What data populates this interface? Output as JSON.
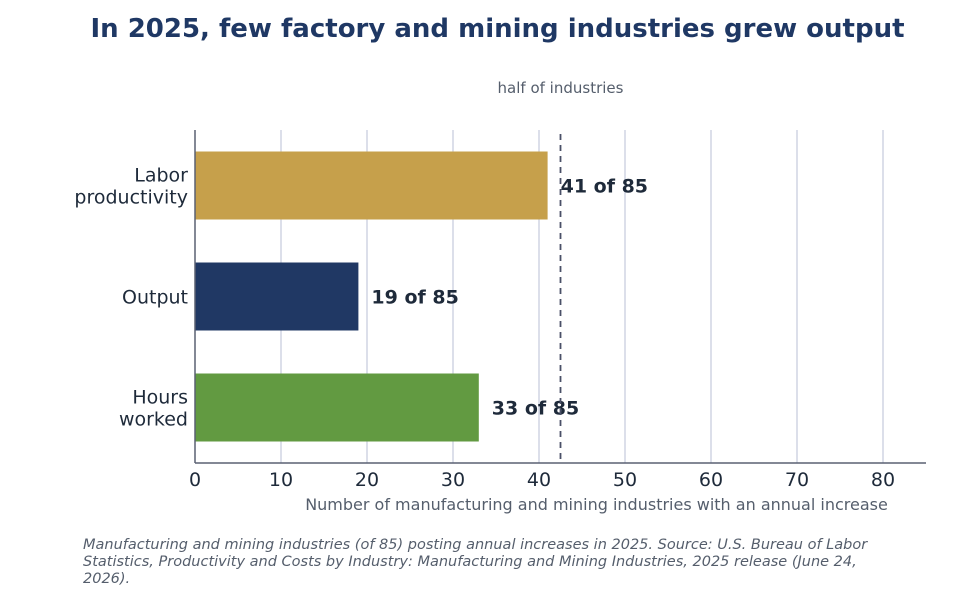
{
  "chart_data": {
    "type": "bar",
    "orientation": "horizontal",
    "title": "In 2025, few factory and mining industries grew output",
    "categories": [
      [
        "Labor",
        "productivity"
      ],
      [
        "Output"
      ],
      [
        "Hours",
        "worked"
      ]
    ],
    "values": [
      41,
      19,
      33
    ],
    "data_labels": [
      "41 of 85",
      "19 of 85",
      "33 of 85"
    ],
    "bar_colors": [
      "#c6a04b",
      "#203864",
      "#629a41"
    ],
    "xlabel": "Number of manufacturing and mining industries with an annual increase",
    "xlim": [
      0,
      85
    ],
    "xticks": [
      0,
      10,
      20,
      30,
      40,
      50,
      60,
      70,
      80
    ],
    "grid": "vertical",
    "reference_line": {
      "value": 42.5,
      "label": "half of industries",
      "style": "dashed"
    }
  },
  "caption": "Manufacturing and mining industries (of 85) posting annual increases in 2025. Source: U.S. Bureau of Labor Statistics, Productivity and Costs by Industry: Manufacturing and Mining Industries, 2025 release (June 24, 2026)."
}
